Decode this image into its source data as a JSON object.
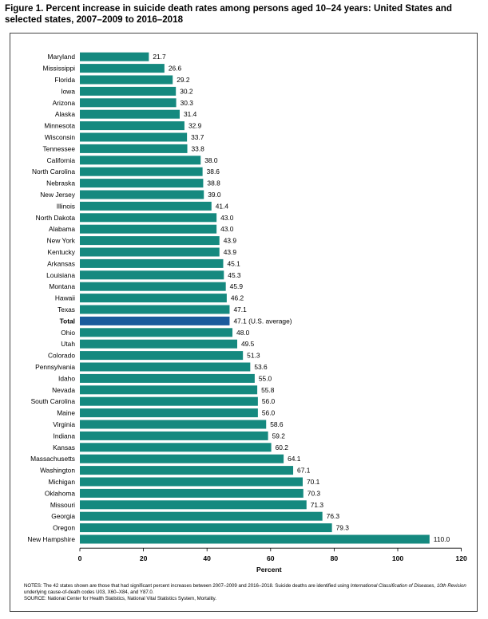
{
  "figure": {
    "title": "Figure 1. Percent increase in suicide death rates among persons aged 10–24 years: United States and selected states, 2007–2009 to 2016–2018"
  },
  "notes": {
    "line1_a": "NOTES: The 42 states shown are those that had significant percent increases between 2007–2009 and 2016–2018. Suicide deaths are identified using ",
    "line1_italic": "International Classification of Diseases, 10th Revision",
    "line1_b": " underlying cause-of-death codes U03, X60–X84, and Y87.0.",
    "source": "SOURCE: National Center for Health Statistics, National Vital Statistics System, Mortality."
  },
  "colors": {
    "bar": "#15897f",
    "highlight": "#1a5b9c"
  },
  "chart_data": {
    "type": "bar",
    "orientation": "horizontal",
    "title": "Percent increase in suicide death rates among persons aged 10–24 years",
    "xlabel": "Percent",
    "ylabel": "",
    "xlim": [
      0,
      120
    ],
    "xticks": [
      0,
      20,
      40,
      60,
      80,
      100,
      120
    ],
    "grid": false,
    "highlight_category": "Total",
    "categories": [
      "Maryland",
      "Mississippi",
      "Florida",
      "Iowa",
      "Arizona",
      "Alaska",
      "Minnesota",
      "Wisconsin",
      "Tennessee",
      "California",
      "North Carolina",
      "Nebraska",
      "New Jersey",
      "Illinois",
      "North Dakota",
      "Alabama",
      "New York",
      "Kentucky",
      "Arkansas",
      "Louisiana",
      "Montana",
      "Hawaii",
      "Texas",
      "Total",
      "Ohio",
      "Utah",
      "Colorado",
      "Pennsylvania",
      "Idaho",
      "Nevada",
      "South Carolina",
      "Maine",
      "Virginia",
      "Indiana",
      "Kansas",
      "Massachusetts",
      "Washington",
      "Michigan",
      "Oklahoma",
      "Missouri",
      "Georgia",
      "Oregon",
      "New Hampshire"
    ],
    "values": [
      21.7,
      26.6,
      29.2,
      30.2,
      30.3,
      31.4,
      32.9,
      33.7,
      33.8,
      38.0,
      38.6,
      38.8,
      39.0,
      41.4,
      43.0,
      43.0,
      43.9,
      43.9,
      45.1,
      45.3,
      45.9,
      46.2,
      47.1,
      47.1,
      48.0,
      49.5,
      51.3,
      53.6,
      55.0,
      55.8,
      56.0,
      56.0,
      58.6,
      59.2,
      60.2,
      64.1,
      67.1,
      70.1,
      70.3,
      71.3,
      76.3,
      79.3,
      110.0
    ],
    "data_labels": [
      "21.7",
      "26.6",
      "29.2",
      "30.2",
      "30.3",
      "31.4",
      "32.9",
      "33.7",
      "33.8",
      "38.0",
      "38.6",
      "38.8",
      "39.0",
      "41.4",
      "43.0",
      "43.0",
      "43.9",
      "43.9",
      "45.1",
      "45.3",
      "45.9",
      "46.2",
      "47.1",
      "47.1 (U.S. average)",
      "48.0",
      "49.5",
      "51.3",
      "53.6",
      "55.0",
      "55.8",
      "56.0",
      "56.0",
      "58.6",
      "59.2",
      "60.2",
      "64.1",
      "67.1",
      "70.1",
      "70.3",
      "71.3",
      "76.3",
      "79.3",
      "110.0"
    ]
  }
}
